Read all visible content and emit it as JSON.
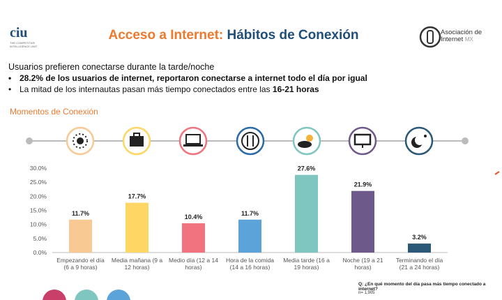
{
  "header": {
    "title_part1": "Acceso a Internet:",
    "title_part2": "Hábitos de Conexión",
    "logo_left": "ciu",
    "logo_left_subtitle": "THE COMPETITIVE INTELLIGENCE UNIT",
    "logo_right_line1": "Asociación de",
    "logo_right_line2": "Internet",
    "logo_right_suffix": "MX"
  },
  "intro": "Usuarios prefieren conectarse durante la tarde/noche",
  "bullets": [
    {
      "text": "28.2% de los usuarios de internet, reportaron conectarse a internet todo el día por igual"
    },
    {
      "text": "La mitad de los internautas pasan más tiempo conectados entre las ",
      "bold": "16-21 horas"
    }
  ],
  "footnote": {
    "question": "Q:  ¿En qué momento del día pasa más tiempo conectado a internet?",
    "sample": "n= 1,905"
  },
  "chart_data": {
    "type": "bar",
    "title": "Momentos de Conexión",
    "categories": [
      "Empezando el día (6 a 9 horas)",
      "Media mañana (9 a 12 horas)",
      "Medio día (12 a 14 horas)",
      "Hora de la comida (14 a 16 horas)",
      "Media tarde (16 a 19 horas)",
      "Noche (19 a 21 horas)",
      "Terminando el día (21 a 24 horas)"
    ],
    "values": [
      11.7,
      17.7,
      10.4,
      11.7,
      27.6,
      21.9,
      3.2
    ],
    "value_labels": [
      "11.7%",
      "17.7%",
      "10.4%",
      "11.7%",
      "27.6%",
      "21.9%",
      "3.2%"
    ],
    "colors": [
      "#f9c993",
      "#fdd663",
      "#f0737f",
      "#5ba3d8",
      "#7fc5c0",
      "#6e5a8a",
      "#2c5878"
    ],
    "ylim": [
      0,
      30
    ],
    "yticks": [
      {
        "value": 0,
        "label": "0.0%"
      },
      {
        "value": 5,
        "label": "5.0%"
      },
      {
        "value": 10,
        "label": "10.0%"
      },
      {
        "value": 15,
        "label": "15.0%"
      },
      {
        "value": 20,
        "label": "20.0%"
      },
      {
        "value": 25,
        "label": "25.0%"
      },
      {
        "value": 30,
        "label": "30.0%"
      }
    ],
    "grid": false
  }
}
